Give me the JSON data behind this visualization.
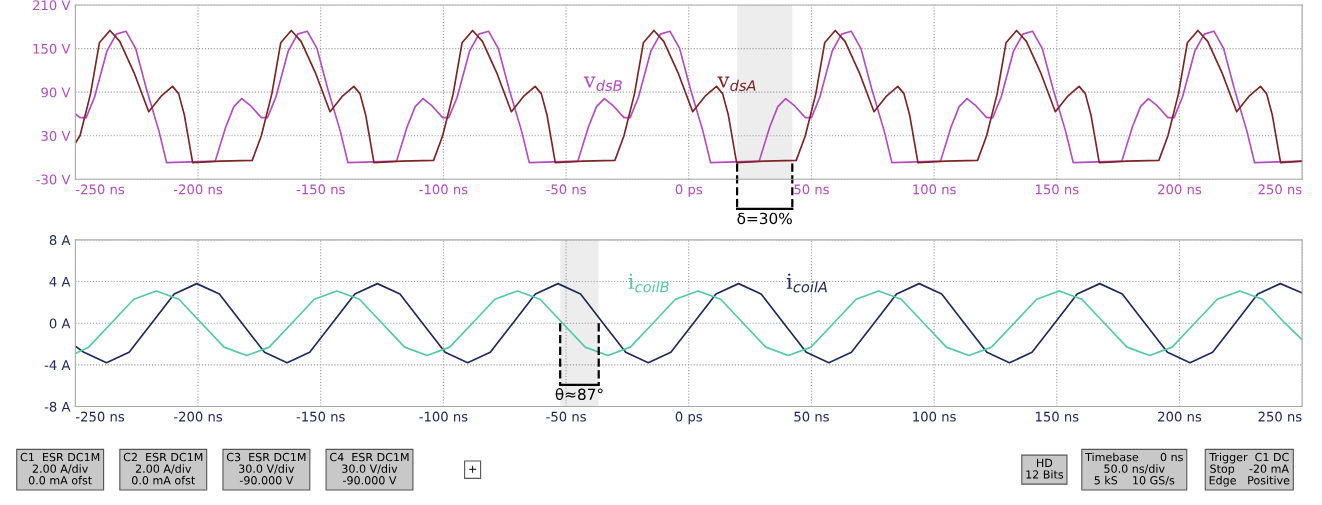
{
  "chart_data": [
    {
      "type": "line",
      "xlim": [
        -250,
        250
      ],
      "ylim": [
        -30,
        210
      ],
      "grid": true,
      "xticks": [
        {
          "value": -250,
          "label": "-250 ns"
        },
        {
          "value": -200,
          "label": "-200 ns"
        },
        {
          "value": -150,
          "label": "-150 ns"
        },
        {
          "value": -100,
          "label": "-100 ns"
        },
        {
          "value": -50,
          "label": "-50 ns"
        },
        {
          "value": 0,
          "label": "0 ps"
        },
        {
          "value": 50,
          "label": "50 ns"
        },
        {
          "value": 100,
          "label": "100 ns"
        },
        {
          "value": 150,
          "label": "150 ns"
        },
        {
          "value": 200,
          "label": "200 ns"
        },
        {
          "value": 250,
          "label": "250 ns"
        }
      ],
      "yticks": [
        {
          "value": -30,
          "label": "-30 V"
        },
        {
          "value": 30,
          "label": "30 V"
        },
        {
          "value": 90,
          "label": "90 V"
        },
        {
          "value": 150,
          "label": "150 V"
        },
        {
          "value": 210,
          "label": "210 V"
        }
      ],
      "bands": [
        {
          "axis": "x",
          "from": 19.7,
          "to": 42.2,
          "label": "δ=30%",
          "color": "#000000"
        }
      ],
      "series": [
        {
          "name": "v$_{dsB}$",
          "color": "#b24cbf",
          "x": [
            -250,
            -248.1,
            -245.6,
            -242.2,
            -237.1,
            -233.3,
            -229.4,
            -225.4,
            -221.0,
            -215.9,
            -212.8,
            -193.0,
            -188.7,
            -185.4,
            -182.2,
            -178.5,
            -174.2,
            -171.7,
            -168.3,
            -163.2,
            -159.4,
            -155.5,
            -151.5,
            -147.1,
            -142.0,
            -138.9,
            -119.1,
            -114.8,
            -111.5,
            -108.3,
            -104.6,
            -100.3,
            -97.8,
            -94.4,
            -89.3,
            -85.5,
            -81.6,
            -77.6,
            -73.2,
            -68.1,
            -65.0,
            -45.2,
            -40.9,
            -37.6,
            -34.4,
            -30.7,
            -26.4,
            -23.9,
            -20.5,
            -15.4,
            -11.6,
            -7.7,
            -3.7,
            0.7,
            5.8,
            8.9,
            28.7,
            33.0,
            36.3,
            39.5,
            43.2,
            47.5,
            50.0,
            53.4,
            58.5,
            62.3,
            66.2,
            70.2,
            74.6,
            79.7,
            82.8,
            102.6,
            106.9,
            110.2,
            113.4,
            117.1,
            121.4,
            123.9,
            127.3,
            132.4,
            136.2,
            140.1,
            144.1,
            148.5,
            153.6,
            156.7,
            176.5,
            180.8,
            184.1,
            187.3,
            191.0,
            195.3,
            197.8,
            201.2,
            206.3,
            210.1,
            214.0,
            218.0,
            222.4,
            227.5,
            230.6,
            250
          ],
          "values": [
            60,
            55,
            55,
            83,
            147,
            170,
            174,
            150,
            94,
            36,
            -7,
            -5,
            42,
            70,
            81,
            71,
            55,
            55,
            83,
            147,
            170,
            174,
            150,
            94,
            36,
            -7,
            -5,
            42,
            70,
            81,
            71,
            55,
            55,
            83,
            147,
            170,
            174,
            150,
            94,
            36,
            -7,
            -5,
            42,
            70,
            81,
            71,
            55,
            55,
            83,
            147,
            170,
            174,
            150,
            94,
            36,
            -7,
            -5,
            42,
            70,
            81,
            71,
            55,
            55,
            83,
            147,
            170,
            174,
            150,
            94,
            36,
            -7,
            -5,
            42,
            70,
            81,
            71,
            55,
            55,
            83,
            147,
            170,
            174,
            150,
            94,
            36,
            -7,
            -5,
            42,
            70,
            81,
            71,
            55,
            55,
            83,
            147,
            170,
            174,
            150,
            94,
            36,
            -7,
            -5
          ]
        },
        {
          "name": "v$_{dsA}$",
          "color": "#7d2424",
          "x": [
            -250,
            -248.1,
            -243.8,
            -240.2,
            -235.9,
            -231.9,
            -226.1,
            -220.1,
            -214.9,
            -210.4,
            -207.9,
            -205.6,
            -202.2,
            -190.9,
            -177.9,
            -174.2,
            -169.9,
            -166.3,
            -162.0,
            -158.0,
            -152.2,
            -146.2,
            -141.0,
            -136.5,
            -134.0,
            -131.7,
            -128.3,
            -117.0,
            -104.0,
            -100.3,
            -96.0,
            -92.4,
            -88.1,
            -84.1,
            -78.3,
            -72.3,
            -67.1,
            -62.6,
            -60.1,
            -57.8,
            -54.4,
            -43.1,
            -30.1,
            -26.4,
            -22.1,
            -18.5,
            -14.2,
            -10.2,
            -4.4,
            1.6,
            6.8,
            11.3,
            13.8,
            16.1,
            19.5,
            30.8,
            43.8,
            47.5,
            51.8,
            55.4,
            59.7,
            63.7,
            69.5,
            75.5,
            80.7,
            85.2,
            87.7,
            90.0,
            93.4,
            104.7,
            117.7,
            121.4,
            125.7,
            129.3,
            133.6,
            137.6,
            143.4,
            149.4,
            154.6,
            159.1,
            161.6,
            163.9,
            167.3,
            178.6,
            191.6,
            195.3,
            199.6,
            203.2,
            207.5,
            211.5,
            217.3,
            223.3,
            228.5,
            233.0,
            235.5,
            237.8,
            241.2,
            250
          ],
          "values": [
            20,
            30,
            88,
            158,
            175,
            160,
            117,
            63,
            85,
            98,
            88,
            59,
            -7,
            -5,
            -4,
            30,
            88,
            158,
            175,
            160,
            117,
            63,
            85,
            98,
            88,
            59,
            -7,
            -5,
            -4,
            30,
            88,
            158,
            175,
            160,
            117,
            63,
            85,
            98,
            88,
            59,
            -7,
            -5,
            -4,
            30,
            88,
            158,
            175,
            160,
            117,
            63,
            85,
            98,
            88,
            59,
            -7,
            -5,
            -4,
            30,
            88,
            158,
            175,
            160,
            117,
            63,
            85,
            98,
            88,
            59,
            -7,
            -5,
            -4,
            30,
            88,
            158,
            175,
            160,
            117,
            63,
            85,
            98,
            88,
            59,
            -7,
            -5,
            -4,
            30,
            88,
            158,
            175,
            160,
            117,
            63,
            85,
            98,
            88,
            59,
            -7,
            -5
          ]
        }
      ]
    },
    {
      "type": "line",
      "xlim": [
        -250,
        250
      ],
      "ylim": [
        -8,
        8
      ],
      "grid": true,
      "xticks": [
        {
          "value": -250,
          "label": "-250 ns"
        },
        {
          "value": -200,
          "label": "-200 ns"
        },
        {
          "value": -150,
          "label": "-150 ns"
        },
        {
          "value": -100,
          "label": "-100 ns"
        },
        {
          "value": -50,
          "label": "-50 ns"
        },
        {
          "value": 0,
          "label": "0 ps"
        },
        {
          "value": 50,
          "label": "50 ns"
        },
        {
          "value": 100,
          "label": "100 ns"
        },
        {
          "value": 150,
          "label": "150 ns"
        },
        {
          "value": 200,
          "label": "200 ns"
        },
        {
          "value": 250,
          "label": "250 ns"
        }
      ],
      "yticks": [
        {
          "value": -8,
          "label": "-8 A"
        },
        {
          "value": -4,
          "label": "-4 A"
        },
        {
          "value": 0,
          "label": "0 A"
        },
        {
          "value": 4,
          "label": "4 A"
        },
        {
          "value": 8,
          "label": "8 A"
        }
      ],
      "bands": [
        {
          "axis": "x",
          "from": -52.4,
          "to": -36.7,
          "label": "θ≈87°",
          "color": "#000000"
        }
      ],
      "series": [
        {
          "name": "i$_{coilA}$",
          "color": "#1f2a5c",
          "x": [
            -250,
            -246.5,
            -237.3,
            -228.1,
            -218.9,
            -209.7,
            -200.5,
            -191.3,
            -182.1,
            -172.9,
            -163.7,
            -154.5,
            -145.3,
            -136.1,
            -126.9,
            -117.7,
            -108.5,
            -99.3,
            -90.1,
            -80.9,
            -71.7,
            -62.5,
            -53.3,
            -44.1,
            -34.9,
            -25.7,
            -16.5,
            -7.3,
            1.9,
            11.1,
            20.3,
            29.5,
            38.7,
            47.9,
            57.1,
            66.3,
            75.5,
            84.7,
            93.9,
            103.1,
            112.3,
            121.5,
            130.7,
            139.9,
            149.1,
            158.3,
            167.5,
            176.7,
            185.9,
            195.1,
            204.3,
            213.5,
            222.7,
            231.9,
            241.1,
            250
          ],
          "values": [
            -2.2,
            -2.8,
            -3.8,
            -2.8,
            0,
            2.8,
            3.8,
            2.8,
            0,
            -2.8,
            -3.8,
            -2.8,
            0,
            2.8,
            3.8,
            2.8,
            0,
            -2.8,
            -3.8,
            -2.8,
            0,
            2.8,
            3.8,
            2.8,
            0,
            -2.8,
            -3.8,
            -2.8,
            0,
            2.8,
            3.8,
            2.8,
            0,
            -2.8,
            -3.8,
            -2.8,
            0,
            2.8,
            3.8,
            2.8,
            0,
            -2.8,
            -3.8,
            -2.8,
            0,
            2.8,
            3.8,
            2.8,
            0,
            -2.8,
            -3.8,
            -2.8,
            0,
            2.8,
            3.8,
            2.9
          ]
        },
        {
          "name": "i$_{coilB}$",
          "color": "#52c9a4",
          "x": [
            -250,
            -244.6,
            -235.4,
            -226.2,
            -217.0,
            -207.8,
            -198.6,
            -189.4,
            -180.2,
            -171.0,
            -161.8,
            -152.6,
            -143.4,
            -134.2,
            -125.0,
            -115.8,
            -106.6,
            -97.4,
            -88.2,
            -79.0,
            -69.8,
            -60.6,
            -51.4,
            -42.2,
            -33.0,
            -23.8,
            -14.6,
            -5.4,
            3.8,
            13.0,
            22.2,
            31.4,
            40.6,
            49.8,
            59.0,
            68.2,
            77.4,
            86.6,
            95.8,
            105.0,
            114.2,
            123.4,
            132.6,
            141.8,
            151.0,
            160.2,
            169.4,
            178.6,
            187.8,
            197.0,
            206.2,
            215.4,
            224.6,
            233.8,
            243.0,
            250
          ],
          "values": [
            -2.9,
            -2.3,
            0,
            2.3,
            3.1,
            2.3,
            0,
            -2.3,
            -3.1,
            -2.3,
            0,
            2.3,
            3.1,
            2.3,
            0,
            -2.3,
            -3.1,
            -2.3,
            0,
            2.3,
            3.1,
            2.3,
            0,
            -2.3,
            -3.1,
            -2.3,
            0,
            2.3,
            3.1,
            2.3,
            0,
            -2.3,
            -3.1,
            -2.3,
            0,
            2.3,
            3.1,
            2.3,
            0,
            -2.3,
            -3.1,
            -2.3,
            0,
            2.3,
            3.1,
            2.3,
            0,
            -2.3,
            -3.1,
            -2.3,
            0,
            2.3,
            3.1,
            2.3,
            0,
            -1.6
          ]
        }
      ]
    },
    {
      "type": "other",
      "annotations": [
        "C1  ESR DC1M\n2.00 A/div\n0.0 mA ofst",
        "C2  ESR DC1M\n2.00 A/div\n0.0 mA ofst",
        "C3  ESR DC1M\n30.0 V/div\n-90.000 V",
        "C4  ESR DC1M\n30.0 V/div\n-90.000 V",
        "+",
        "HD\n12 Bits",
        "Timebase      0 ns\n50.0 ns/div\n5 kS    10 GS/s",
        "Trigger  C1 DC\nStop    -20 mA\nEdge   Positive"
      ]
    }
  ]
}
